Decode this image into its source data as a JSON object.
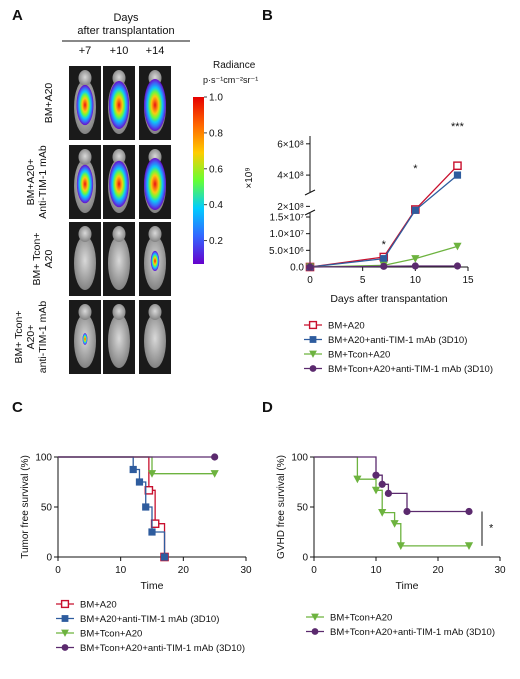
{
  "panels": {
    "A": {
      "letter": "A",
      "header": [
        "Days",
        "after transplantation"
      ],
      "days": [
        "+7",
        "+10",
        "+14"
      ],
      "groups": [
        {
          "label_lines": [
            "BM+A20"
          ],
          "signal": [
            0.6,
            0.85,
            1.0
          ]
        },
        {
          "label_lines": [
            "BM+A20+",
            "Anti-TIM-1 mAb"
          ],
          "signal": [
            0.55,
            0.8,
            1.0
          ]
        },
        {
          "label_lines": [
            "BM+ Tcon+",
            "A20"
          ],
          "signal": [
            0.0,
            0.0,
            0.15
          ]
        },
        {
          "label_lines": [
            "BM+ Tcon+",
            "A20+",
            "anti-TIM-1 mAb"
          ],
          "signal": [
            0.05,
            0.0,
            0.0
          ]
        }
      ],
      "colorbar": {
        "title": "Radiance",
        "units": "p·s⁻¹cm⁻²sr⁻¹",
        "ticks": [
          "1.0",
          "0.8",
          "0.6",
          "0.4",
          "0.2"
        ],
        "tick_values": [
          1.0,
          0.8,
          0.6,
          0.4,
          0.2
        ],
        "range": [
          0.07,
          1.0
        ],
        "multiplier": "×10⁹",
        "colors": [
          "#e60000",
          "#ff6600",
          "#ffcc00",
          "#66ff33",
          "#00ccff",
          "#3366ff",
          "#6600cc"
        ]
      }
    },
    "B": {
      "letter": "B"
    },
    "C": {
      "letter": "C"
    },
    "D": {
      "letter": "D"
    }
  },
  "chart_data": [
    {
      "panel": "B",
      "type": "line",
      "xlabel": "Days after transpantation",
      "xlim": [
        0,
        15
      ],
      "xticks": [
        0,
        5,
        10,
        15
      ],
      "broken_axis": true,
      "upper_segment": {
        "ylim": [
          100000000,
          650000000
        ],
        "ticks": [
          200000000,
          400000000,
          600000000
        ],
        "tick_labels": [
          "2×10⁸",
          "4×10⁸",
          "6×10⁸"
        ]
      },
      "lower_segment": {
        "ylim": [
          0,
          15000000
        ],
        "ticks": [
          0,
          5000000,
          10000000,
          15000000
        ],
        "tick_labels": [
          "0.0",
          "5.0×10⁶",
          "1.0×10⁷",
          "1.5×10⁷"
        ]
      },
      "series": [
        {
          "name": "BM+A20",
          "color": "#c8102e",
          "marker": "open-square",
          "x": [
            0,
            7,
            10,
            14
          ],
          "y": [
            0,
            3000000,
            180000000,
            460000000
          ]
        },
        {
          "name": "BM+A20+anti-TIM-1 mAb (3D10)",
          "color": "#2e5c9e",
          "marker": "filled-square",
          "x": [
            0,
            7,
            10,
            14
          ],
          "y": [
            0,
            2500000,
            175000000,
            400000000
          ]
        },
        {
          "name": "BM+Tcon+A20",
          "color": "#6db33f",
          "marker": "filled-triangle-down",
          "x": [
            0,
            7,
            10,
            14
          ],
          "y": [
            0,
            500000,
            2500000,
            6200000
          ]
        },
        {
          "name": "BM+Tcon+A20+anti-TIM-1 mAb (3D10)",
          "color": "#5b2a6e",
          "marker": "filled-circle",
          "x": [
            0,
            7,
            10,
            14
          ],
          "y": [
            0,
            200000,
            300000,
            300000
          ]
        }
      ],
      "annotations": [
        {
          "text": "*",
          "x": 7
        },
        {
          "text": "*",
          "x": 10
        },
        {
          "text": "***",
          "x": 14
        }
      ]
    },
    {
      "panel": "C",
      "type": "line",
      "step": true,
      "xlabel": "Time",
      "ylabel": "Tumor free survival (%)",
      "xlim": [
        0,
        30
      ],
      "ylim": [
        0,
        100
      ],
      "xticks": [
        0,
        10,
        20,
        30
      ],
      "yticks": [
        0,
        50,
        100
      ],
      "series": [
        {
          "name": "BM+A20",
          "color": "#c8102e",
          "marker": "open-square",
          "x": [
            0,
            14.5,
            15.5,
            17
          ],
          "y": [
            100,
            66.7,
            33.3,
            0
          ]
        },
        {
          "name": "BM+A20+anti-TIM-1 mAb (3D10)",
          "color": "#2e5c9e",
          "marker": "filled-square",
          "x": [
            0,
            12,
            13,
            14,
            15,
            17
          ],
          "y": [
            100,
            87.5,
            75,
            50,
            25,
            0
          ]
        },
        {
          "name": "BM+Tcon+A20",
          "color": "#6db33f",
          "marker": "filled-triangle-down",
          "x": [
            0,
            15,
            25
          ],
          "y": [
            100,
            83.3,
            83.3
          ]
        },
        {
          "name": "BM+Tcon+A20+anti-TIM-1 mAb (3D10)",
          "color": "#5b2a6e",
          "marker": "filled-circle",
          "x": [
            0,
            25
          ],
          "y": [
            100,
            100
          ]
        }
      ]
    },
    {
      "panel": "D",
      "type": "line",
      "step": true,
      "xlabel": "Time",
      "ylabel": "GVHD free survival (%)",
      "xlim": [
        0,
        30
      ],
      "ylim": [
        0,
        100
      ],
      "xticks": [
        0,
        10,
        20,
        30
      ],
      "yticks": [
        0,
        50,
        100
      ],
      "series": [
        {
          "name": "BM+Tcon+A20",
          "color": "#6db33f",
          "marker": "filled-triangle-down",
          "x": [
            0,
            7,
            10,
            11,
            13,
            14,
            25
          ],
          "y": [
            100,
            77.8,
            66.7,
            44.4,
            33.3,
            11.1,
            11.1
          ]
        },
        {
          "name": "BM+Tcon+A20+anti-TIM-1 mAb (3D10)",
          "color": "#5b2a6e",
          "marker": "filled-circle",
          "x": [
            0,
            10,
            11,
            12,
            15,
            25
          ],
          "y": [
            100,
            81.8,
            72.7,
            63.6,
            45.5,
            45.5
          ]
        }
      ],
      "annotations": [
        {
          "text": "*"
        }
      ]
    }
  ]
}
